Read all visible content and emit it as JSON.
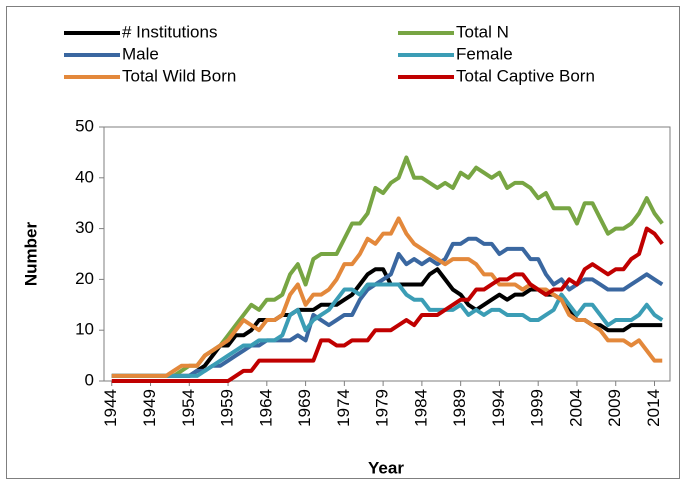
{
  "chart_data": {
    "type": "line",
    "xlabel": "Year",
    "ylabel": "Number",
    "x": [
      1944,
      1945,
      1946,
      1947,
      1948,
      1949,
      1950,
      1951,
      1952,
      1953,
      1954,
      1955,
      1956,
      1957,
      1958,
      1959,
      1960,
      1961,
      1962,
      1963,
      1964,
      1965,
      1966,
      1967,
      1968,
      1969,
      1970,
      1971,
      1972,
      1973,
      1974,
      1975,
      1976,
      1977,
      1978,
      1979,
      1980,
      1981,
      1982,
      1983,
      1984,
      1985,
      1986,
      1987,
      1988,
      1989,
      1990,
      1991,
      1992,
      1993,
      1994,
      1995,
      1996,
      1997,
      1998,
      1999,
      2000,
      2001,
      2002,
      2003,
      2004,
      2005,
      2006,
      2007,
      2008,
      2009,
      2010,
      2011,
      2012,
      2013,
      2014,
      2015
    ],
    "xlim": [
      1943,
      2016
    ],
    "xticks": [
      1944,
      1949,
      1954,
      1959,
      1964,
      1969,
      1974,
      1979,
      1984,
      1989,
      1994,
      1999,
      2004,
      2009,
      2014
    ],
    "ylim": [
      0,
      50
    ],
    "yticks": [
      0,
      10,
      20,
      30,
      40,
      50
    ],
    "legend": "top",
    "series": [
      {
        "name": "# Institutions",
        "color": "#000000",
        "values": [
          1,
          1,
          1,
          1,
          1,
          1,
          1,
          1,
          1,
          1,
          1,
          2,
          3,
          5,
          7,
          7,
          9,
          9,
          10,
          12,
          12,
          12,
          13,
          13,
          14,
          14,
          14,
          15,
          15,
          15,
          16,
          17,
          19,
          21,
          22,
          22,
          19,
          19,
          19,
          19,
          19,
          21,
          22,
          20,
          18,
          17,
          15,
          14,
          15,
          16,
          17,
          16,
          17,
          17,
          18,
          18,
          17,
          17,
          16,
          14,
          12,
          12,
          11,
          11,
          10,
          10,
          10,
          11,
          11,
          11,
          11,
          11
        ]
      },
      {
        "name": "Total N",
        "color": "#77a543",
        "values": [
          1,
          1,
          1,
          1,
          1,
          1,
          1,
          1,
          1,
          2,
          3,
          3,
          5,
          6,
          7,
          9,
          11,
          13,
          15,
          14,
          16,
          16,
          17,
          21,
          23,
          19,
          24,
          25,
          25,
          25,
          28,
          31,
          31,
          33,
          38,
          37,
          39,
          40,
          44,
          40,
          40,
          39,
          38,
          39,
          38,
          41,
          40,
          42,
          41,
          40,
          41,
          38,
          39,
          39,
          38,
          36,
          37,
          34,
          34,
          34,
          31,
          35,
          35,
          32,
          29,
          30,
          30,
          31,
          33,
          36,
          33,
          31
        ]
      },
      {
        "name": "Male",
        "color": "#3a67a0",
        "values": [
          1,
          1,
          1,
          1,
          1,
          1,
          1,
          1,
          1,
          1,
          1,
          2,
          2,
          3,
          3,
          4,
          5,
          6,
          7,
          7,
          8,
          8,
          8,
          8,
          9,
          8,
          13,
          12,
          11,
          12,
          13,
          13,
          16,
          18,
          19,
          20,
          21,
          25,
          23,
          24,
          23,
          24,
          23,
          24,
          27,
          27,
          28,
          28,
          27,
          27,
          25,
          26,
          26,
          26,
          24,
          24,
          21,
          19,
          20,
          18,
          19,
          20,
          20,
          19,
          18,
          18,
          18,
          19,
          20,
          21,
          20,
          19
        ]
      },
      {
        "name": "Female",
        "color": "#3b9db5",
        "values": [
          1,
          1,
          1,
          1,
          1,
          1,
          1,
          1,
          1,
          1,
          1,
          1,
          2,
          3,
          4,
          5,
          6,
          7,
          7,
          8,
          8,
          8,
          9,
          13,
          14,
          10,
          12,
          13,
          14,
          16,
          18,
          18,
          17,
          19,
          19,
          19,
          19,
          19,
          17,
          16,
          16,
          14,
          14,
          14,
          14,
          15,
          13,
          14,
          13,
          14,
          14,
          13,
          13,
          13,
          12,
          12,
          13,
          14,
          17,
          15,
          13,
          15,
          15,
          13,
          11,
          12,
          12,
          12,
          13,
          15,
          13,
          12
        ]
      },
      {
        "name": "Total Wild Born",
        "color": "#e3883b",
        "values": [
          1,
          1,
          1,
          1,
          1,
          1,
          1,
          1,
          2,
          3,
          3,
          3,
          5,
          6,
          7,
          8,
          10,
          12,
          11,
          10,
          12,
          12,
          13,
          17,
          19,
          15,
          17,
          17,
          18,
          20,
          23,
          23,
          25,
          28,
          27,
          29,
          29,
          32,
          29,
          27,
          26,
          25,
          24,
          23,
          24,
          24,
          24,
          23,
          21,
          21,
          19,
          19,
          19,
          18,
          19,
          18,
          18,
          17,
          16,
          13,
          12,
          12,
          11,
          10,
          8,
          8,
          8,
          7,
          8,
          6,
          4,
          4
        ]
      },
      {
        "name": "Total Captive Born",
        "color": "#c00000",
        "values": [
          0,
          0,
          0,
          0,
          0,
          0,
          0,
          0,
          0,
          0,
          0,
          0,
          0,
          0,
          0,
          0,
          1,
          2,
          2,
          4,
          4,
          4,
          4,
          4,
          4,
          4,
          4,
          8,
          8,
          7,
          7,
          8,
          8,
          8,
          10,
          10,
          10,
          11,
          12,
          11,
          13,
          13,
          13,
          14,
          15,
          16,
          16,
          18,
          18,
          19,
          20,
          20,
          21,
          21,
          19,
          18,
          17,
          18,
          18,
          20,
          19,
          22,
          23,
          22,
          21,
          22,
          22,
          24,
          25,
          30,
          29,
          27
        ]
      }
    ]
  }
}
